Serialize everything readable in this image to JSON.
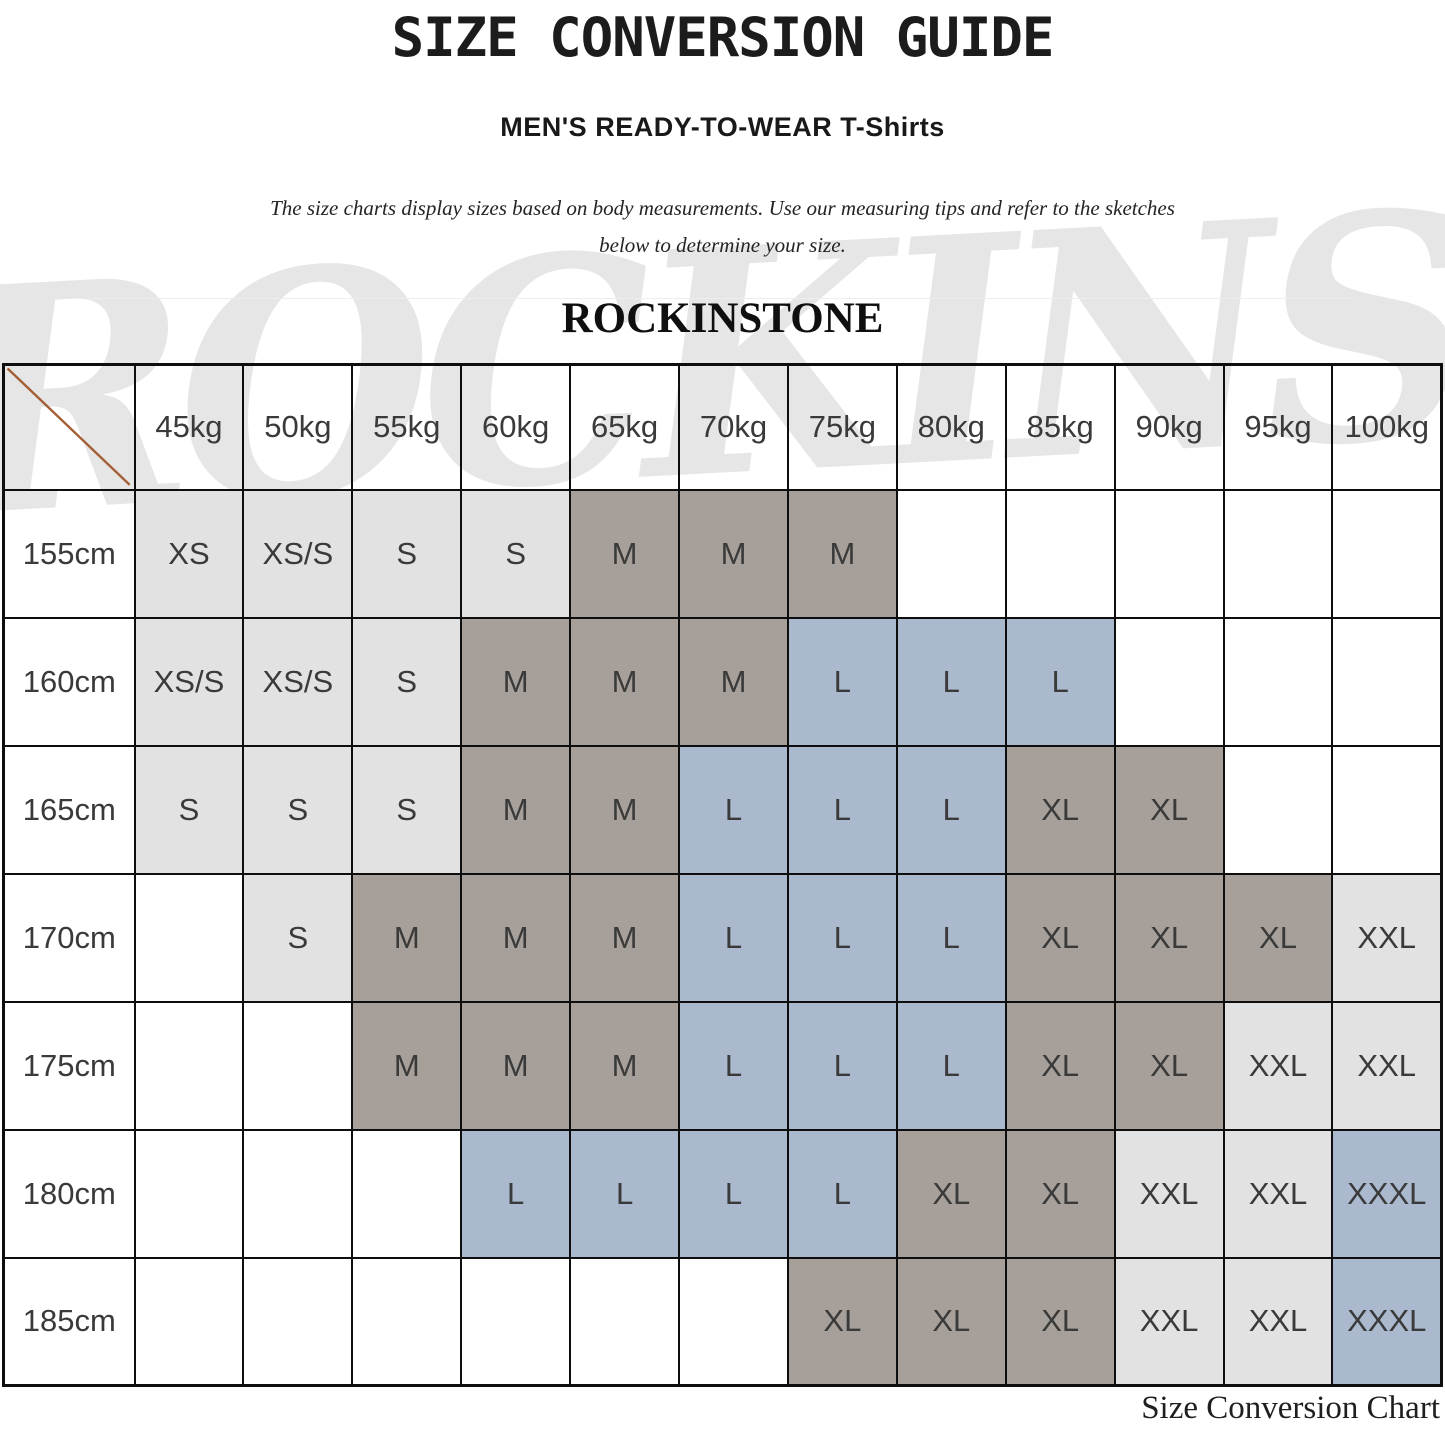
{
  "page": {
    "title": "SIZE CONVERSION GUIDE",
    "subtitle": "MEN'S READY-TO-WEAR T-Shirts",
    "description_line1": "The size charts display sizes based on body measurements. Use our measuring tips and refer to the sketches",
    "description_line2": "below to determine your size.",
    "brand": "ROCKINSTONE",
    "watermark_text": "ROCKINSTONE",
    "caption": "Size Conversion Chart"
  },
  "colors": {
    "group_small_fill": "#e2e2e2",
    "group_medium_xl_fill": "#a7a09a",
    "group_large_fill": "#aab9cd",
    "diagonal_line": "#a35e35",
    "grid_border": "#0e0e0e"
  },
  "chart_data": {
    "type": "table",
    "title": "Size Conversion Guide - Men's Ready-to-Wear T-Shirts",
    "columns": [
      "45kg",
      "50kg",
      "55kg",
      "60kg",
      "65kg",
      "70kg",
      "75kg",
      "80kg",
      "85kg",
      "90kg",
      "95kg",
      "100kg"
    ],
    "rows": [
      {
        "label": "155cm",
        "cells": [
          {
            "size": "XS",
            "group": "s"
          },
          {
            "size": "XS/S",
            "group": "s"
          },
          {
            "size": "S",
            "group": "s"
          },
          {
            "size": "S",
            "group": "s"
          },
          {
            "size": "M",
            "group": "m"
          },
          {
            "size": "M",
            "group": "m"
          },
          {
            "size": "M",
            "group": "m"
          },
          {
            "size": "",
            "group": ""
          },
          {
            "size": "",
            "group": ""
          },
          {
            "size": "",
            "group": ""
          },
          {
            "size": "",
            "group": ""
          },
          {
            "size": "",
            "group": ""
          }
        ]
      },
      {
        "label": "160cm",
        "cells": [
          {
            "size": "XS/S",
            "group": "s"
          },
          {
            "size": "XS/S",
            "group": "s"
          },
          {
            "size": "S",
            "group": "s"
          },
          {
            "size": "M",
            "group": "m"
          },
          {
            "size": "M",
            "group": "m"
          },
          {
            "size": "M",
            "group": "m"
          },
          {
            "size": "L",
            "group": "l"
          },
          {
            "size": "L",
            "group": "l"
          },
          {
            "size": "L",
            "group": "l"
          },
          {
            "size": "",
            "group": ""
          },
          {
            "size": "",
            "group": ""
          },
          {
            "size": "",
            "group": ""
          }
        ]
      },
      {
        "label": "165cm",
        "cells": [
          {
            "size": "S",
            "group": "s"
          },
          {
            "size": "S",
            "group": "s"
          },
          {
            "size": "S",
            "group": "s"
          },
          {
            "size": "M",
            "group": "m"
          },
          {
            "size": "M",
            "group": "m"
          },
          {
            "size": "L",
            "group": "l"
          },
          {
            "size": "L",
            "group": "l"
          },
          {
            "size": "L",
            "group": "l"
          },
          {
            "size": "XL",
            "group": "m"
          },
          {
            "size": "XL",
            "group": "m"
          },
          {
            "size": "",
            "group": ""
          },
          {
            "size": "",
            "group": ""
          }
        ]
      },
      {
        "label": "170cm",
        "cells": [
          {
            "size": "",
            "group": ""
          },
          {
            "size": "S",
            "group": "s"
          },
          {
            "size": "M",
            "group": "m"
          },
          {
            "size": "M",
            "group": "m"
          },
          {
            "size": "M",
            "group": "m"
          },
          {
            "size": "L",
            "group": "l"
          },
          {
            "size": "L",
            "group": "l"
          },
          {
            "size": "L",
            "group": "l"
          },
          {
            "size": "XL",
            "group": "m"
          },
          {
            "size": "XL",
            "group": "m"
          },
          {
            "size": "XL",
            "group": "m"
          },
          {
            "size": "XXL",
            "group": "s"
          }
        ]
      },
      {
        "label": "175cm",
        "cells": [
          {
            "size": "",
            "group": ""
          },
          {
            "size": "",
            "group": ""
          },
          {
            "size": "M",
            "group": "m"
          },
          {
            "size": "M",
            "group": "m"
          },
          {
            "size": "M",
            "group": "m"
          },
          {
            "size": "L",
            "group": "l"
          },
          {
            "size": "L",
            "group": "l"
          },
          {
            "size": "L",
            "group": "l"
          },
          {
            "size": "XL",
            "group": "m"
          },
          {
            "size": "XL",
            "group": "m"
          },
          {
            "size": "XXL",
            "group": "s"
          },
          {
            "size": "XXL",
            "group": "s"
          }
        ]
      },
      {
        "label": "180cm",
        "cells": [
          {
            "size": "",
            "group": ""
          },
          {
            "size": "",
            "group": ""
          },
          {
            "size": "",
            "group": ""
          },
          {
            "size": "L",
            "group": "l"
          },
          {
            "size": "L",
            "group": "l"
          },
          {
            "size": "L",
            "group": "l"
          },
          {
            "size": "L",
            "group": "l"
          },
          {
            "size": "XL",
            "group": "m"
          },
          {
            "size": "XL",
            "group": "m"
          },
          {
            "size": "XXL",
            "group": "s"
          },
          {
            "size": "XXL",
            "group": "s"
          },
          {
            "size": "XXXL",
            "group": "l"
          }
        ]
      },
      {
        "label": "185cm",
        "cells": [
          {
            "size": "",
            "group": ""
          },
          {
            "size": "",
            "group": ""
          },
          {
            "size": "",
            "group": ""
          },
          {
            "size": "",
            "group": ""
          },
          {
            "size": "",
            "group": ""
          },
          {
            "size": "",
            "group": ""
          },
          {
            "size": "XL",
            "group": "m"
          },
          {
            "size": "XL",
            "group": "m"
          },
          {
            "size": "XL",
            "group": "m"
          },
          {
            "size": "XXL",
            "group": "s"
          },
          {
            "size": "XXL",
            "group": "s"
          },
          {
            "size": "XXXL",
            "group": "l"
          }
        ]
      }
    ]
  }
}
